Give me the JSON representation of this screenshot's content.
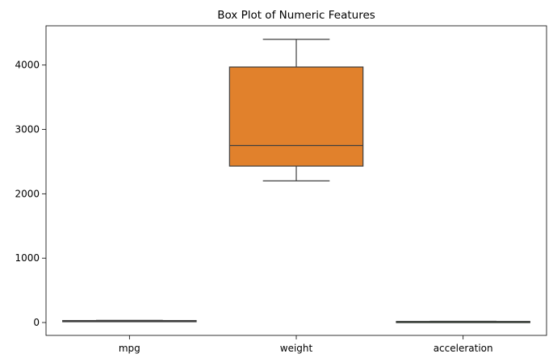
{
  "chart_data": {
    "type": "box",
    "title": "Box Plot of Numeric Features",
    "xlabel": "",
    "ylabel": "",
    "categories": [
      "mpg",
      "weight",
      "acceleration"
    ],
    "boxes": [
      {
        "category": "mpg",
        "whisker_low": 15,
        "q1": 18,
        "median": 24,
        "q3": 31,
        "whisker_high": 33,
        "color": "#3274a1"
      },
      {
        "category": "weight",
        "whisker_low": 2200,
        "q1": 2430,
        "median": 2750,
        "q3": 3970,
        "whisker_high": 4400,
        "color": "#e1812c"
      },
      {
        "category": "acceleration",
        "whisker_low": 11,
        "q1": 13.5,
        "median": 15.5,
        "q3": 17,
        "whisker_high": 20,
        "color": "#3a923a"
      }
    ],
    "y_ticks": [
      0,
      1000,
      2000,
      3000,
      4000
    ],
    "ylim": [
      -200,
      4610
    ],
    "grid": false,
    "legend": "none",
    "edge_color": "#3f3f3f"
  }
}
